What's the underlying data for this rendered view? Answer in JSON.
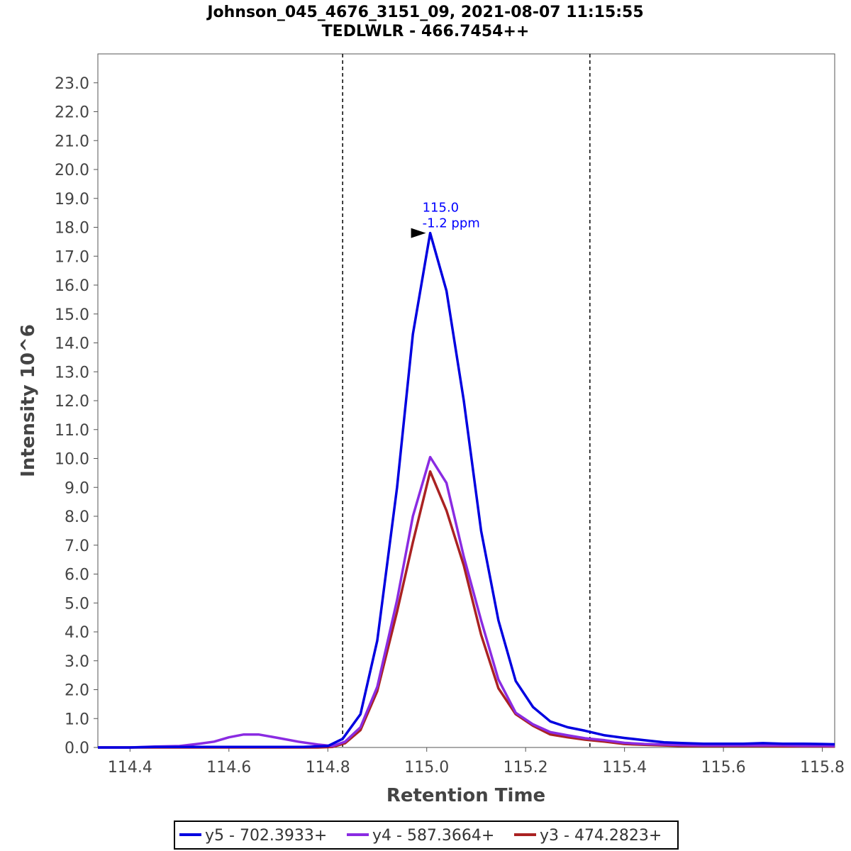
{
  "chart_data": {
    "type": "line",
    "title_line1": "Johnson_045_4676_3151_09, 2021-08-07 11:15:55",
    "title_line2": "TEDLWLR - 466.7454++",
    "xlabel": "Retention Time",
    "ylabel": "Intensity 10^6",
    "xlim": [
      114.335,
      115.825
    ],
    "ylim": [
      0,
      24.0
    ],
    "x_ticks": [
      "114.4",
      "114.6",
      "114.8",
      "115.0",
      "115.2",
      "115.4",
      "115.6",
      "115.8"
    ],
    "y_ticks": [
      "0.0",
      "1.0",
      "2.0",
      "3.0",
      "4.0",
      "5.0",
      "6.0",
      "7.0",
      "8.0",
      "9.0",
      "10.0",
      "11.0",
      "12.0",
      "13.0",
      "14.0",
      "15.0",
      "16.0",
      "17.0",
      "18.0",
      "19.0",
      "20.0",
      "21.0",
      "22.0",
      "23.0"
    ],
    "boundaries": [
      114.83,
      115.33
    ],
    "annotation": {
      "x": 115.007,
      "y": 17.8,
      "line1": "115.0",
      "line2": "-1.2 ppm"
    },
    "series": [
      {
        "name": "y5 - 702.3933+",
        "color": "#0000e0",
        "points": [
          [
            114.335,
            0
          ],
          [
            114.4,
            0
          ],
          [
            114.45,
            0.02
          ],
          [
            114.5,
            0.02
          ],
          [
            114.55,
            0.02
          ],
          [
            114.6,
            0.02
          ],
          [
            114.65,
            0.02
          ],
          [
            114.7,
            0.02
          ],
          [
            114.75,
            0.02
          ],
          [
            114.8,
            0.05
          ],
          [
            114.83,
            0.3
          ],
          [
            114.866,
            1.15
          ],
          [
            114.9,
            3.7
          ],
          [
            114.94,
            9.0
          ],
          [
            114.972,
            14.3
          ],
          [
            115.007,
            17.8
          ],
          [
            115.04,
            15.8
          ],
          [
            115.075,
            12.0
          ],
          [
            115.11,
            7.5
          ],
          [
            115.145,
            4.4
          ],
          [
            115.18,
            2.3
          ],
          [
            115.215,
            1.4
          ],
          [
            115.25,
            0.9
          ],
          [
            115.285,
            0.7
          ],
          [
            115.32,
            0.58
          ],
          [
            115.36,
            0.42
          ],
          [
            115.4,
            0.33
          ],
          [
            115.44,
            0.25
          ],
          [
            115.48,
            0.18
          ],
          [
            115.52,
            0.15
          ],
          [
            115.56,
            0.13
          ],
          [
            115.6,
            0.13
          ],
          [
            115.64,
            0.13
          ],
          [
            115.68,
            0.15
          ],
          [
            115.72,
            0.13
          ],
          [
            115.76,
            0.13
          ],
          [
            115.8,
            0.12
          ],
          [
            115.825,
            0.11
          ]
        ]
      },
      {
        "name": "y4 - 587.3664+",
        "color": "#8a2be2",
        "points": [
          [
            114.335,
            0
          ],
          [
            114.4,
            0
          ],
          [
            114.45,
            0.03
          ],
          [
            114.5,
            0.05
          ],
          [
            114.54,
            0.13
          ],
          [
            114.57,
            0.2
          ],
          [
            114.6,
            0.35
          ],
          [
            114.63,
            0.45
          ],
          [
            114.66,
            0.45
          ],
          [
            114.7,
            0.33
          ],
          [
            114.74,
            0.2
          ],
          [
            114.78,
            0.1
          ],
          [
            114.81,
            0.05
          ],
          [
            114.835,
            0.2
          ],
          [
            114.866,
            0.7
          ],
          [
            114.9,
            2.1
          ],
          [
            114.94,
            5.1
          ],
          [
            114.972,
            8.0
          ],
          [
            115.007,
            10.05
          ],
          [
            115.04,
            9.15
          ],
          [
            115.075,
            6.6
          ],
          [
            115.11,
            4.4
          ],
          [
            115.145,
            2.35
          ],
          [
            115.18,
            1.2
          ],
          [
            115.215,
            0.8
          ],
          [
            115.25,
            0.53
          ],
          [
            115.285,
            0.42
          ],
          [
            115.32,
            0.32
          ],
          [
            115.36,
            0.25
          ],
          [
            115.4,
            0.16
          ],
          [
            115.44,
            0.12
          ],
          [
            115.48,
            0.1
          ],
          [
            115.52,
            0.08
          ],
          [
            115.56,
            0.07
          ],
          [
            115.6,
            0.07
          ],
          [
            115.64,
            0.07
          ],
          [
            115.68,
            0.07
          ],
          [
            115.72,
            0.07
          ],
          [
            115.76,
            0.06
          ],
          [
            115.8,
            0.06
          ],
          [
            115.825,
            0.05
          ]
        ]
      },
      {
        "name": "y3 - 474.2823+",
        "color": "#aa2222",
        "points": [
          [
            114.335,
            0
          ],
          [
            114.4,
            0
          ],
          [
            114.5,
            0
          ],
          [
            114.6,
            0
          ],
          [
            114.7,
            0
          ],
          [
            114.78,
            0
          ],
          [
            114.81,
            0.02
          ],
          [
            114.835,
            0.15
          ],
          [
            114.866,
            0.6
          ],
          [
            114.9,
            1.95
          ],
          [
            114.94,
            4.7
          ],
          [
            114.972,
            7.1
          ],
          [
            115.007,
            9.55
          ],
          [
            115.04,
            8.2
          ],
          [
            115.075,
            6.3
          ],
          [
            115.11,
            3.9
          ],
          [
            115.145,
            2.05
          ],
          [
            115.18,
            1.15
          ],
          [
            115.215,
            0.75
          ],
          [
            115.25,
            0.45
          ],
          [
            115.285,
            0.35
          ],
          [
            115.32,
            0.27
          ],
          [
            115.36,
            0.2
          ],
          [
            115.4,
            0.12
          ],
          [
            115.44,
            0.09
          ],
          [
            115.48,
            0.07
          ],
          [
            115.52,
            0.05
          ],
          [
            115.56,
            0.05
          ],
          [
            115.6,
            0.05
          ],
          [
            115.64,
            0.05
          ],
          [
            115.68,
            0.05
          ],
          [
            115.72,
            0.04
          ],
          [
            115.76,
            0.04
          ],
          [
            115.8,
            0.04
          ],
          [
            115.825,
            0.03
          ]
        ]
      }
    ]
  }
}
